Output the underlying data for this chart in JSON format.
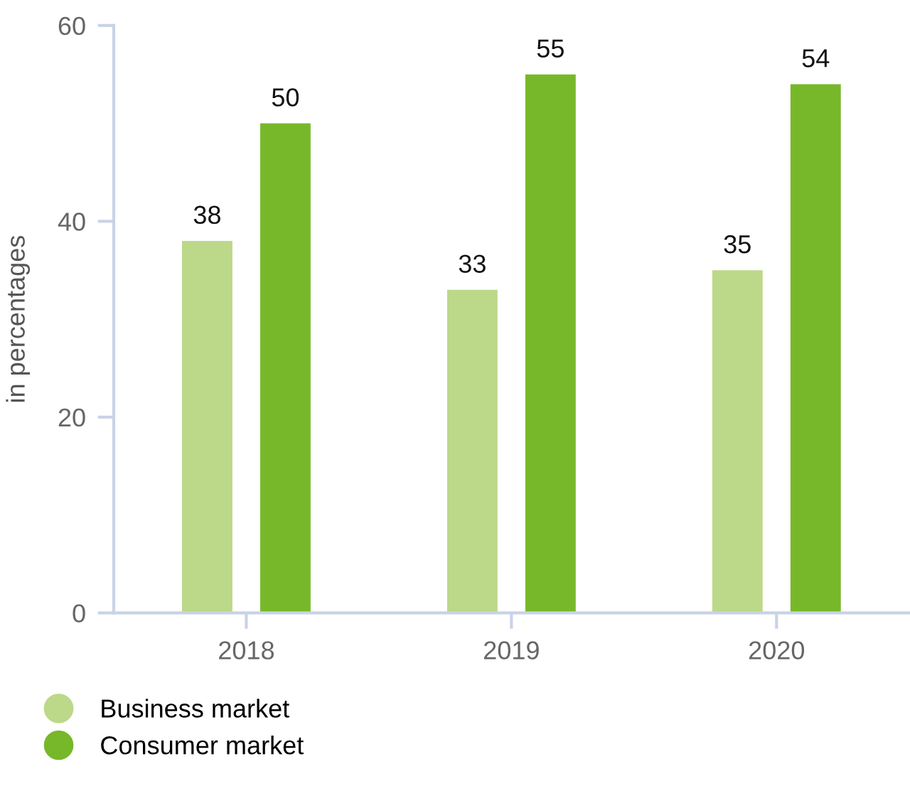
{
  "chart_data": {
    "type": "bar",
    "ylabel": "in percentages",
    "categories": [
      "2018",
      "2019",
      "2020"
    ],
    "series": [
      {
        "name": "Business market",
        "color": "#bcd889",
        "values": [
          38,
          33,
          35
        ]
      },
      {
        "name": "Consumer market",
        "color": "#77b82a",
        "values": [
          50,
          55,
          54
        ]
      }
    ],
    "ylim": [
      0,
      60
    ],
    "yticks": [
      0,
      20,
      40,
      60
    ],
    "grid": false,
    "data_labels": true,
    "legend": "bottom left"
  }
}
